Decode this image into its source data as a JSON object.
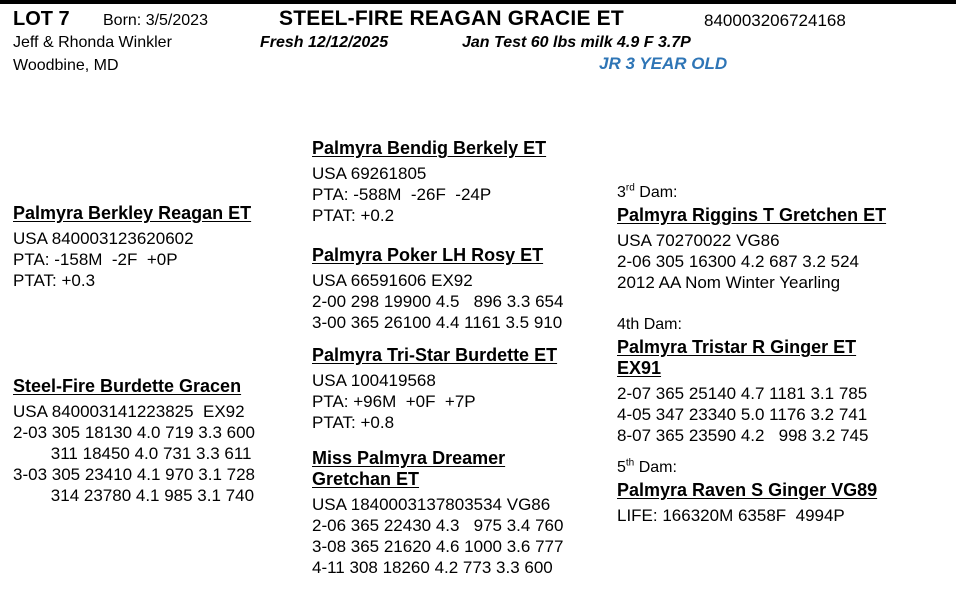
{
  "header": {
    "lot": "LOT 7",
    "born": "Born: 3/5/2023",
    "title": "STEEL-FIRE REAGAN GRACIE ET",
    "reg_number": "840003206724168",
    "owner": "Jeff & Rhonda Winkler",
    "fresh": "Fresh 12/12/2025",
    "jan_test": "Jan Test 60 lbs milk 4.9 F 3.7P",
    "location": "Woodbine, MD",
    "age_class": "JR 3 YEAR OLD",
    "age_class_color": "#2e75b6"
  },
  "left": {
    "sire": {
      "name": "Palmyra Berkley Reagan ET",
      "lines": [
        "USA 840003123620602",
        "PTA: -158M  -2F  +0P",
        "PTAT: +0.3"
      ]
    },
    "dam": {
      "name": "Steel-Fire Burdette Gracen",
      "lines": [
        "USA 840003141223825  EX92",
        "2-03 305 18130 4.0 719 3.3 600",
        "        311 18450 4.0 731 3.3 611",
        "3-03 305 23410 4.1 970 3.1 728",
        "        314 23780 4.1 985 3.1 740"
      ]
    }
  },
  "mid": {
    "blocks": [
      {
        "name": "Palmyra Bendig Berkely ET",
        "lines": [
          "USA 69261805",
          "PTA: -588M  -26F  -24P",
          "PTAT: +0.2"
        ]
      },
      {
        "name": "Palmyra Poker LH Rosy ET",
        "lines": [
          "USA 66591606 EX92",
          "2-00 298 19900 4.5   896 3.3 654",
          "3-00 365 26100 4.4 1161 3.5 910"
        ]
      },
      {
        "name": "Palmyra Tri-Star Burdette ET",
        "lines": [
          "USA 100419568",
          "PTA: +96M  +0F  +7P",
          "PTAT: +0.8"
        ]
      },
      {
        "name": "Miss Palmyra Dreamer Gretchan ET",
        "lines": [
          "USA 1840003137803534 VG86",
          "2-06 365 22430 4.3   975 3.4 760",
          "3-08 365 21620 4.6 1000 3.6 777",
          "4-11 308 18260 4.2 773 3.3 600"
        ]
      }
    ]
  },
  "right": {
    "dams": [
      {
        "label_num": "3",
        "label_sup": "rd",
        "label_rest": " Dam:",
        "name": "Palmyra Riggins T Gretchen ET",
        "lines": [
          "USA 70270022 VG86",
          "2-06 305 16300 4.2 687 3.2 524",
          "2012 AA Nom Winter Yearling"
        ]
      },
      {
        "label_num": "4th",
        "label_sup": "",
        "label_rest": " Dam:",
        "name": "Palmyra Tristar R Ginger ET EX91",
        "lines": [
          "2-07 365 25140 4.7 1181 3.1 785",
          "4-05 347 23340 5.0 1176 3.2 741",
          "8-07 365 23590 4.2   998 3.2 745"
        ]
      },
      {
        "label_num": "5",
        "label_sup": "th",
        "label_rest": " Dam:",
        "name": "Palmyra Raven S Ginger VG89",
        "lines": [
          "LIFE: 166320M 6358F  4994P"
        ]
      }
    ]
  }
}
